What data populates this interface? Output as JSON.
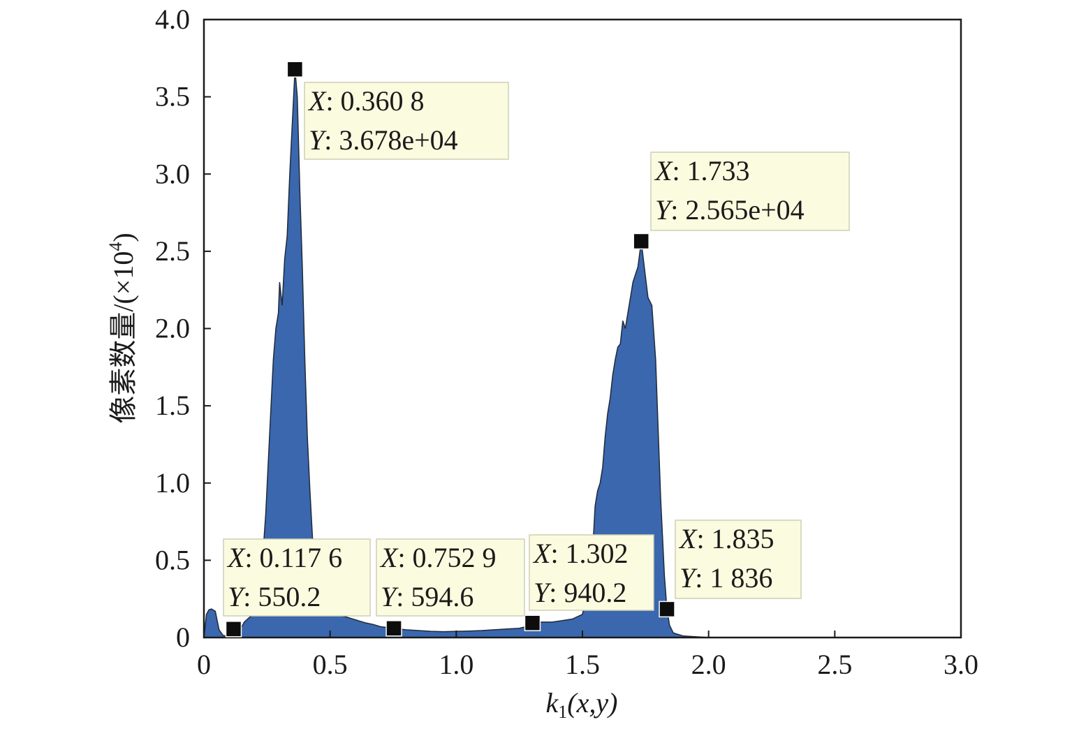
{
  "chart_data": {
    "type": "area",
    "xlabel": "k1(x,y)",
    "xlabel_parts": {
      "base": "k",
      "sub": "1",
      "rest": "(x,y)"
    },
    "ylabel": "像素数量/(×10⁴)",
    "ylabel_parts": {
      "main": "像素数量/(×10",
      "sup": "4",
      "end": ")"
    },
    "xlim": [
      0,
      3.0
    ],
    "ylim": [
      0,
      4.0
    ],
    "x_ticks": [
      "0",
      "0.5",
      "1.0",
      "1.5",
      "2.0",
      "2.5",
      "3.0"
    ],
    "y_ticks": [
      "0",
      "0.5",
      "1.0",
      "1.5",
      "2.0",
      "2.5",
      "3.0",
      "3.5",
      "4.0"
    ],
    "grid": false,
    "fill_color": "#3a67ae",
    "series": [
      {
        "x": [
          0.0,
          0.01,
          0.02,
          0.03,
          0.045,
          0.06,
          0.075,
          0.09,
          0.1176,
          0.14,
          0.16,
          0.18,
          0.2,
          0.215,
          0.23,
          0.245,
          0.26,
          0.275,
          0.285,
          0.295,
          0.3,
          0.31,
          0.32,
          0.33,
          0.34,
          0.3608,
          0.37,
          0.38,
          0.39,
          0.4,
          0.41,
          0.42,
          0.43,
          0.445,
          0.46,
          0.48,
          0.5,
          0.52,
          0.55,
          0.58,
          0.61,
          0.64,
          0.67,
          0.7,
          0.7529,
          0.8,
          0.85,
          0.9,
          0.95,
          1.0,
          1.05,
          1.1,
          1.15,
          1.2,
          1.25,
          1.3,
          1.302,
          1.34,
          1.38,
          1.42,
          1.46,
          1.5,
          1.52,
          1.54,
          1.55,
          1.56,
          1.57,
          1.58,
          1.59,
          1.6,
          1.61,
          1.62,
          1.63,
          1.64,
          1.65,
          1.66,
          1.67,
          1.68,
          1.69,
          1.7,
          1.71,
          1.72,
          1.733,
          1.745,
          1.76,
          1.775,
          1.79,
          1.81,
          1.825,
          1.835,
          1.845,
          1.86,
          1.9,
          2.0,
          3.0
        ],
        "y": [
          0,
          1500,
          1800,
          1850,
          1700,
          500,
          150,
          80,
          550.2,
          400,
          1000,
          1300,
          1500,
          2500,
          4500,
          8000,
          13000,
          18000,
          20000,
          21000,
          23000,
          21500,
          24500,
          26000,
          30000,
          36780,
          35000,
          29000,
          24000,
          18000,
          13000,
          9500,
          6500,
          4000,
          2800,
          2000,
          1700,
          1500,
          1400,
          1250,
          1100,
          950,
          850,
          700,
          594.6,
          500,
          450,
          400,
          380,
          400,
          420,
          450,
          500,
          550,
          600,
          800,
          940.2,
          1000,
          1000,
          1100,
          1200,
          1500,
          3000,
          5500,
          8500,
          9500,
          10000,
          11000,
          13000,
          14500,
          15500,
          17000,
          18000,
          18800,
          19000,
          20500,
          20000,
          21000,
          22000,
          23000,
          23500,
          24000,
          25650,
          24000,
          22000,
          21500,
          18000,
          9000,
          4000,
          1836,
          800,
          300,
          100,
          0,
          0
        ]
      }
    ],
    "data_tips": [
      {
        "x": 0.3608,
        "y": 36780,
        "x_text": "0.360 8",
        "y_text": "3.678e+04"
      },
      {
        "x": 1.733,
        "y": 25650,
        "x_text": "1.733",
        "y_text": "2.565e+04"
      },
      {
        "x": 0.1176,
        "y": 550.2,
        "x_text": "0.117 6",
        "y_text": "550.2"
      },
      {
        "x": 0.7529,
        "y": 594.6,
        "x_text": "0.752 9",
        "y_text": "594.6"
      },
      {
        "x": 1.302,
        "y": 940.2,
        "x_text": "1.302",
        "y_text": "940.2"
      },
      {
        "x": 1.835,
        "y": 1836,
        "x_text": "1.835",
        "y_text": "1 836"
      }
    ],
    "tip_key_x": "X",
    "tip_key_y": "Y",
    "tip_colon": ": "
  }
}
